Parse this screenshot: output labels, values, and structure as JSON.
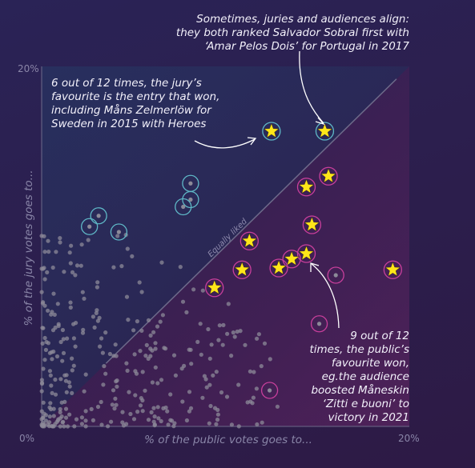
{
  "chart_data": {
    "type": "scatter",
    "xlabel": "% of the public votes goes to...",
    "ylabel": "% of the jury votes goes to...",
    "xlim": [
      0,
      20
    ],
    "ylim": [
      0,
      20
    ],
    "x_ticks": {
      "min": "0%",
      "max": "20%"
    },
    "y_ticks": {
      "min": "0%",
      "max": "20%"
    },
    "diagonal_label": "Equally liked",
    "colors": {
      "dots": "#8c8a98",
      "jury_ring": "#5fb8c7",
      "public_ring": "#c93f9c",
      "winner_star": "#ffe619",
      "axis": "#6d6a8a"
    },
    "winners": [
      {
        "x": 12.5,
        "y": 16.4
      },
      {
        "x": 15.4,
        "y": 16.4
      },
      {
        "x": 14.4,
        "y": 13.3
      },
      {
        "x": 15.6,
        "y": 13.9
      },
      {
        "x": 14.7,
        "y": 11.2
      },
      {
        "x": 11.3,
        "y": 10.3
      },
      {
        "x": 14.4,
        "y": 9.6
      },
      {
        "x": 13.6,
        "y": 9.3
      },
      {
        "x": 12.9,
        "y": 8.8
      },
      {
        "x": 10.9,
        "y": 8.7
      },
      {
        "x": 19.1,
        "y": 8.7
      },
      {
        "x": 9.4,
        "y": 7.7
      }
    ],
    "jury_favourites_not_won": [
      {
        "x": 3.1,
        "y": 11.7
      },
      {
        "x": 2.6,
        "y": 11.1
      },
      {
        "x": 4.2,
        "y": 10.8
      },
      {
        "x": 8.1,
        "y": 13.5
      },
      {
        "x": 8.1,
        "y": 12.6
      },
      {
        "x": 7.7,
        "y": 12.2
      }
    ],
    "public_favourites_not_won": [
      {
        "x": 16.0,
        "y": 8.4
      },
      {
        "x": 15.1,
        "y": 5.7
      },
      {
        "x": 12.4,
        "y": 2.0
      }
    ],
    "other_entries_count": 330
  },
  "annotations": {
    "top": [
      "Sometimes, juries and audiences align:",
      "they both ranked Salvador Sobral first with",
      "‘Amar Pelos Dois’ for Portugal in 2017"
    ],
    "jury": [
      "6 out of 12 times, the jury’s",
      "favourite is the entry that won,",
      "including Måns Zelmerlöw for",
      "Sweden in 2015 with Heroes"
    ],
    "public": [
      "9 out of 12",
      "times, the public’s",
      "favourite won,",
      "eg.the audience",
      "boosted Måneskin",
      "‘Zitti e buoni’ to",
      "victory in 2021"
    ]
  }
}
